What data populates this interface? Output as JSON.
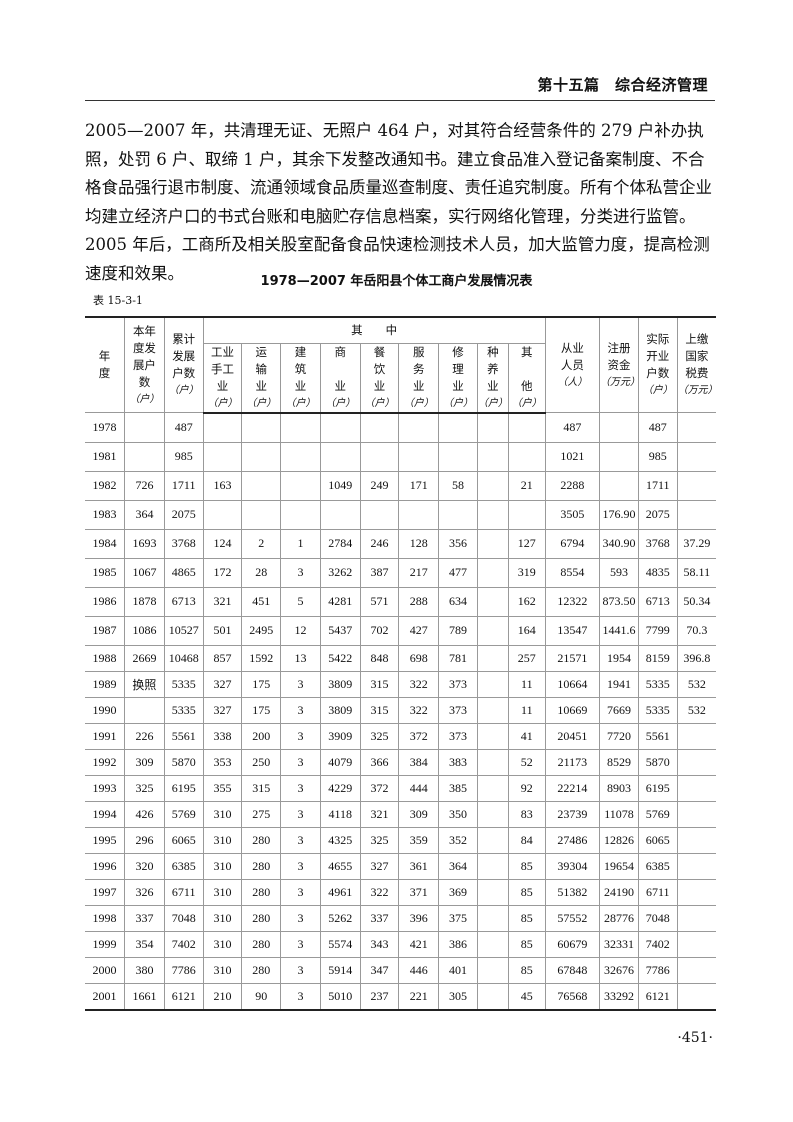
{
  "header": {
    "section": "第十五篇　综合经济管理"
  },
  "paragraph": "2005—2007 年，共清理无证、无照户 464 户，对其符合经营条件的 279 户补办执照，处罚 6 户、取缔 1 户，其余下发整改通知书。建立食品准入登记备案制度、不合格食品强行退市制度、流通领域食品质量巡查制度、责任追究制度。所有个体私营企业均建立经济户口的书式台账和电脑贮存信息档案，实行网络化管理，分类进行监管。2005 年后，工商所及相关股室配备食品快速检测技术人员，加大监管力度，提高检测速度和效果。",
  "table": {
    "title": "1978—2007 年岳阳县个体工商户发展情况表",
    "number": "表 15-3-1",
    "group_header": "其　　中",
    "columns": [
      {
        "label": "年\n度",
        "unit": ""
      },
      {
        "label": "本年\n度发\n展户\n数",
        "unit": "（户）"
      },
      {
        "label": "累计\n发展\n户数",
        "unit": "（户）"
      },
      {
        "label": "工业\n手工\n业",
        "unit": "（户）"
      },
      {
        "label": "运\n输\n业",
        "unit": "（户）"
      },
      {
        "label": "建\n筑\n业",
        "unit": "（户）"
      },
      {
        "label": "商\n\n业",
        "unit": "（户）"
      },
      {
        "label": "餐\n饮\n业",
        "unit": "（户）"
      },
      {
        "label": "服\n务\n业",
        "unit": "（户）"
      },
      {
        "label": "修\n理\n业",
        "unit": "（户）"
      },
      {
        "label": "种\n养\n业",
        "unit": "（户）"
      },
      {
        "label": "其\n\n他",
        "unit": "（户）"
      },
      {
        "label": "从业\n人员",
        "unit": "（人）"
      },
      {
        "label": "注册\n资金",
        "unit": "（万元）"
      },
      {
        "label": "实际\n开业\n户数",
        "unit": "（户）"
      },
      {
        "label": "上缴\n国家\n税费",
        "unit": "（万元）"
      }
    ],
    "rows": [
      [
        "1978",
        "",
        "487",
        "",
        "",
        "",
        "",
        "",
        "",
        "",
        "",
        "",
        "487",
        "",
        "487",
        ""
      ],
      [
        "1981",
        "",
        "985",
        "",
        "",
        "",
        "",
        "",
        "",
        "",
        "",
        "",
        "1021",
        "",
        "985",
        ""
      ],
      [
        "1982",
        "726",
        "1711",
        "163",
        "",
        "",
        "1049",
        "249",
        "171",
        "58",
        "",
        "21",
        "2288",
        "",
        "1711",
        ""
      ],
      [
        "1983",
        "364",
        "2075",
        "",
        "",
        "",
        "",
        "",
        "",
        "",
        "",
        "",
        "3505",
        "176.90",
        "2075",
        ""
      ],
      [
        "1984",
        "1693",
        "3768",
        "124",
        "2",
        "1",
        "2784",
        "246",
        "128",
        "356",
        "",
        "127",
        "6794",
        "340.90",
        "3768",
        "37.29"
      ],
      [
        "1985",
        "1067",
        "4865",
        "172",
        "28",
        "3",
        "3262",
        "387",
        "217",
        "477",
        "",
        "319",
        "8554",
        "593",
        "4835",
        "58.11"
      ],
      [
        "1986",
        "1878",
        "6713",
        "321",
        "451",
        "5",
        "4281",
        "571",
        "288",
        "634",
        "",
        "162",
        "12322",
        "873.50",
        "6713",
        "50.34"
      ],
      [
        "1987",
        "1086",
        "10527",
        "501",
        "2495",
        "12",
        "5437",
        "702",
        "427",
        "789",
        "",
        "164",
        "13547",
        "1441.6",
        "7799",
        "70.3"
      ],
      [
        "1988",
        "2669",
        "10468",
        "857",
        "1592",
        "13",
        "5422",
        "848",
        "698",
        "781",
        "",
        "257",
        "21571",
        "1954",
        "8159",
        "396.8"
      ],
      [
        "1989",
        "换照",
        "5335",
        "327",
        "175",
        "3",
        "3809",
        "315",
        "322",
        "373",
        "",
        "11",
        "10664",
        "1941",
        "5335",
        "532"
      ],
      [
        "1990",
        "",
        "5335",
        "327",
        "175",
        "3",
        "3809",
        "315",
        "322",
        "373",
        "",
        "11",
        "10669",
        "7669",
        "5335",
        "532"
      ],
      [
        "1991",
        "226",
        "5561",
        "338",
        "200",
        "3",
        "3909",
        "325",
        "372",
        "373",
        "",
        "41",
        "20451",
        "7720",
        "5561",
        ""
      ],
      [
        "1992",
        "309",
        "5870",
        "353",
        "250",
        "3",
        "4079",
        "366",
        "384",
        "383",
        "",
        "52",
        "21173",
        "8529",
        "5870",
        ""
      ],
      [
        "1993",
        "325",
        "6195",
        "355",
        "315",
        "3",
        "4229",
        "372",
        "444",
        "385",
        "",
        "92",
        "22214",
        "8903",
        "6195",
        ""
      ],
      [
        "1994",
        "426",
        "5769",
        "310",
        "275",
        "3",
        "4118",
        "321",
        "309",
        "350",
        "",
        "83",
        "23739",
        "11078",
        "5769",
        ""
      ],
      [
        "1995",
        "296",
        "6065",
        "310",
        "280",
        "3",
        "4325",
        "325",
        "359",
        "352",
        "",
        "84",
        "27486",
        "12826",
        "6065",
        ""
      ],
      [
        "1996",
        "320",
        "6385",
        "310",
        "280",
        "3",
        "4655",
        "327",
        "361",
        "364",
        "",
        "85",
        "39304",
        "19654",
        "6385",
        ""
      ],
      [
        "1997",
        "326",
        "6711",
        "310",
        "280",
        "3",
        "4961",
        "322",
        "371",
        "369",
        "",
        "85",
        "51382",
        "24190",
        "6711",
        ""
      ],
      [
        "1998",
        "337",
        "7048",
        "310",
        "280",
        "3",
        "5262",
        "337",
        "396",
        "375",
        "",
        "85",
        "57552",
        "28776",
        "7048",
        ""
      ],
      [
        "1999",
        "354",
        "7402",
        "310",
        "280",
        "3",
        "5574",
        "343",
        "421",
        "386",
        "",
        "85",
        "60679",
        "32331",
        "7402",
        ""
      ],
      [
        "2000",
        "380",
        "7786",
        "310",
        "280",
        "3",
        "5914",
        "347",
        "446",
        "401",
        "",
        "85",
        "67848",
        "32676",
        "7786",
        ""
      ],
      [
        "2001",
        "1661",
        "6121",
        "210",
        "90",
        "3",
        "5010",
        "237",
        "221",
        "305",
        "",
        "45",
        "76568",
        "33292",
        "6121",
        ""
      ]
    ]
  },
  "page_number": "·451·"
}
